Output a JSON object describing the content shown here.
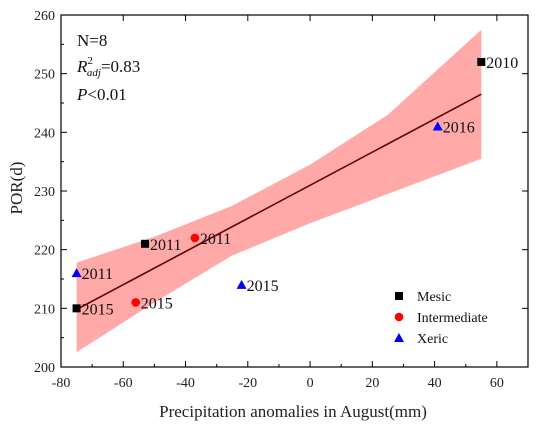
{
  "chart_data": {
    "type": "scatter",
    "xlabel": "Precipitation anomalies in August(mm)",
    "ylabel": "POR(d)",
    "xlim": [
      -80,
      70
    ],
    "ylim": [
      200,
      260
    ],
    "xticks": [
      -80,
      -60,
      -40,
      -20,
      0,
      20,
      40,
      60
    ],
    "yticks": [
      200,
      210,
      220,
      230,
      240,
      250,
      260
    ],
    "grid": false,
    "legend_position": "bottom-right",
    "stats": {
      "n": "N=8",
      "r2_base": "R",
      "r2_sup": "2",
      "r2_sub": "adj",
      "r2_value": "=0.83",
      "p_italic": "P",
      "p_value": "<0.01"
    },
    "series": [
      {
        "name": "Mesic",
        "marker": "square",
        "color": "#000000",
        "points": [
          {
            "x": 55,
            "y": 252,
            "label": "2010"
          },
          {
            "x": -53,
            "y": 221,
            "label": "2011"
          },
          {
            "x": -75,
            "y": 210,
            "label": "2015"
          }
        ]
      },
      {
        "name": "Intermediate",
        "marker": "circle",
        "color": "#ff0000",
        "points": [
          {
            "x": -37,
            "y": 222,
            "label": "2011"
          },
          {
            "x": -56,
            "y": 211,
            "label": "2015"
          }
        ]
      },
      {
        "name": "Xeric",
        "marker": "triangle",
        "color": "#0000ff",
        "points": [
          {
            "x": -75,
            "y": 216,
            "label": "2011"
          },
          {
            "x": -22,
            "y": 214,
            "label": "2015"
          },
          {
            "x": 41,
            "y": 241,
            "label": "2016"
          }
        ]
      }
    ],
    "fit_line": {
      "x": [
        -75,
        55
      ],
      "y": [
        209.8,
        246.5
      ],
      "color": "#6b0000"
    },
    "confidence_band": {
      "color": "#ff9a9a",
      "x": [
        -75,
        -50,
        -25,
        0,
        25,
        55
      ],
      "upper": [
        217.8,
        222.2,
        227.5,
        234.5,
        243.0,
        257.5
      ],
      "lower": [
        202.5,
        211.0,
        219.0,
        224.5,
        229.5,
        235.5
      ]
    }
  }
}
